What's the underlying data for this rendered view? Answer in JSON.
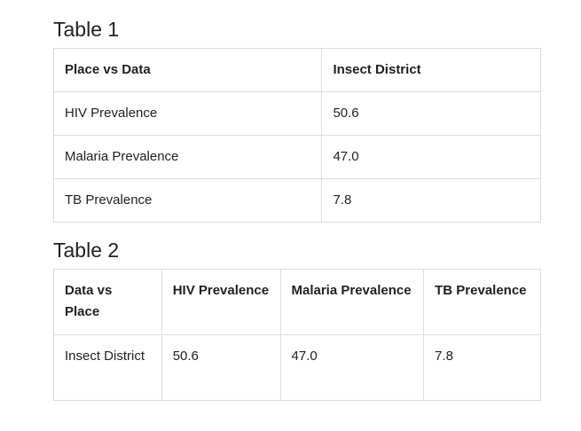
{
  "table1": {
    "caption": "Table 1",
    "headers": [
      "Place vs Data",
      "Insect District"
    ],
    "rows": [
      [
        "HIV Prevalence",
        "50.6"
      ],
      [
        "Malaria Prevalence",
        "47.0"
      ],
      [
        "TB Prevalence",
        "7.8"
      ]
    ]
  },
  "table2": {
    "caption": "Table 2",
    "headers": [
      "Data vs Place",
      "HIV Prevalence",
      "Malaria Prevalence",
      "TB Prevalence"
    ],
    "rows": [
      [
        "Insect District",
        "50.6",
        "47.0",
        "7.8"
      ]
    ]
  }
}
